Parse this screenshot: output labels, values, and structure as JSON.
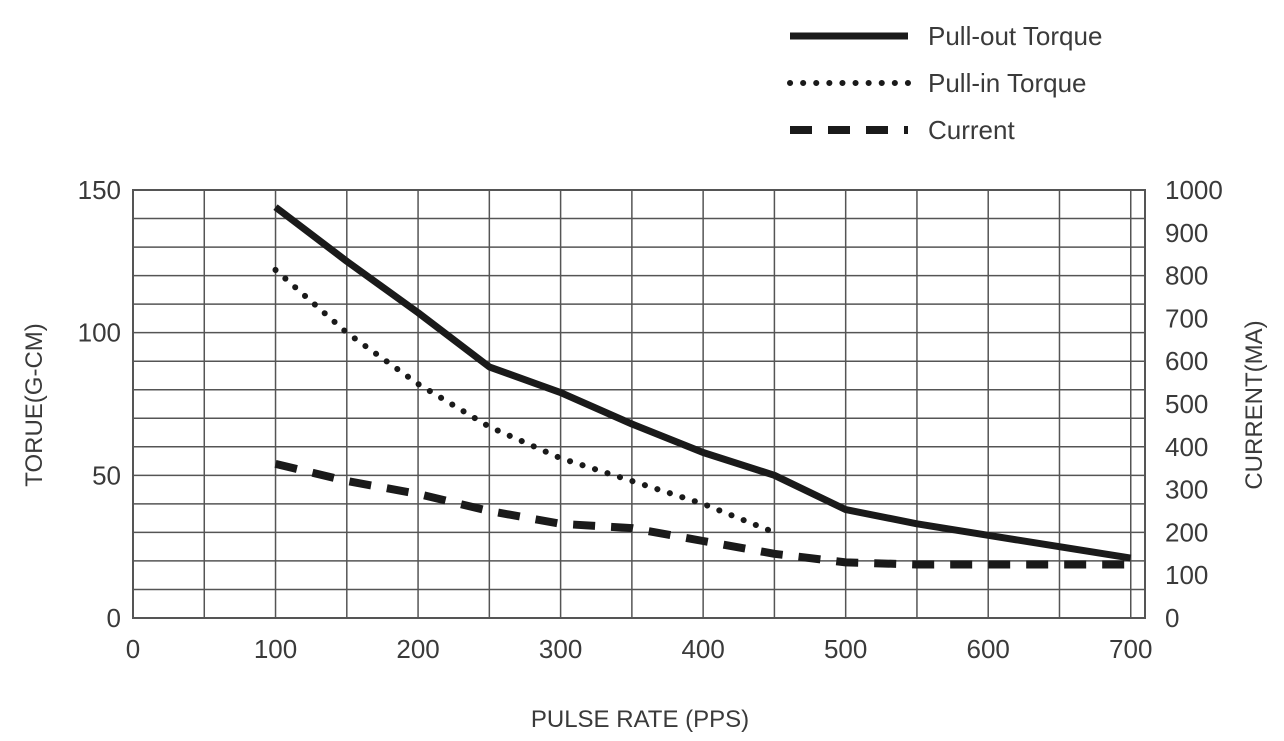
{
  "chart_data": {
    "type": "line",
    "xlabel": "PULSE RATE (PPS)",
    "ylabel_left": "TORUE(G-CM)",
    "ylabel_right": "CURRENT(MA)",
    "xlim": [
      0,
      710
    ],
    "ylim_left": [
      0,
      150
    ],
    "ylim_right": [
      0,
      1000
    ],
    "x_ticks": [
      "0",
      "100",
      "200",
      "300",
      "400",
      "500",
      "600",
      "700"
    ],
    "y_left_ticks": [
      "0",
      "50",
      "100",
      "150"
    ],
    "y_right_ticks": [
      "0",
      "100",
      "200",
      "300",
      "400",
      "500",
      "600",
      "700",
      "800",
      "900",
      "1000"
    ],
    "grid": true,
    "legend_position": "top-right",
    "colors": {
      "line": "#1a1a1a",
      "grid": "#555555",
      "text": "#3a3a3a"
    },
    "series": [
      {
        "name": "Pull-out Torque",
        "style": "solid",
        "axis": "left",
        "x": [
          100,
          150,
          200,
          250,
          300,
          350,
          400,
          450,
          500,
          550,
          600,
          650,
          700
        ],
        "y": [
          144,
          125,
          107,
          88,
          79,
          68,
          58,
          50,
          38,
          33,
          29,
          25,
          21
        ]
      },
      {
        "name": "Pull-in Torque",
        "style": "dotted",
        "axis": "left",
        "x": [
          100,
          150,
          200,
          250,
          300,
          350,
          400,
          450
        ],
        "y": [
          122,
          100,
          82,
          67,
          56,
          48,
          40,
          30
        ]
      },
      {
        "name": "Current",
        "style": "dashed",
        "axis": "right",
        "x": [
          100,
          150,
          200,
          250,
          300,
          350,
          400,
          450,
          500,
          550,
          600,
          650,
          700
        ],
        "y": [
          360,
          320,
          290,
          250,
          220,
          210,
          180,
          150,
          130,
          125,
          125,
          125,
          125
        ]
      }
    ]
  }
}
